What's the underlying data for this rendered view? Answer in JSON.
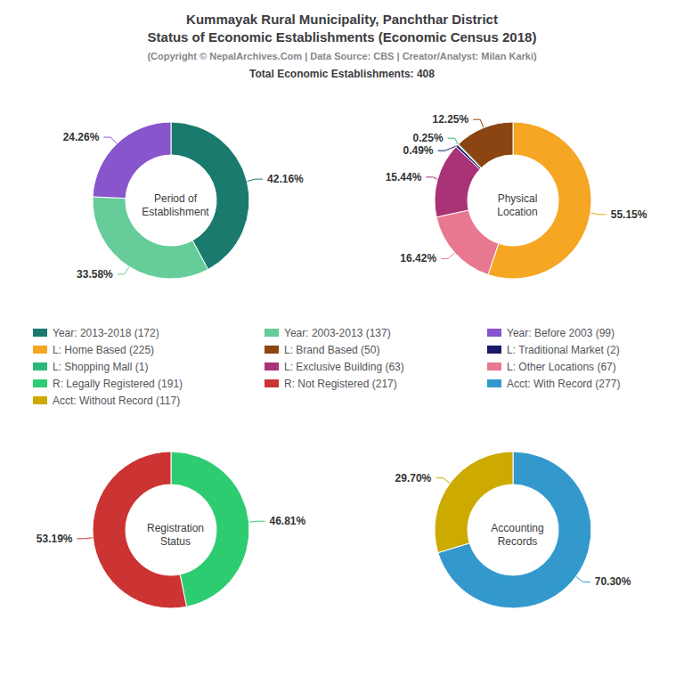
{
  "title": "Kummayak Rural Municipality, Panchthar District\nStatus of Economic Establishments (Economic Census 2018)",
  "subtitle": "(Copyright © NepalArchives.Com | Data Source: CBS | Creator/Analyst: Milan Karki)",
  "annotations": [
    "Total Economic Establishments: 408"
  ],
  "legend_entries": [
    "Year: 2013-2018 (172)",
    "Year: 2003-2013 (137)",
    "Year: Before 2003 (99)",
    "L: Home Based (225)",
    "L: Brand Based (50)",
    "L: Traditional Market (2)",
    "L: Shopping Mall (1)",
    "L: Exclusive Building (63)",
    "L: Other Locations (67)",
    "R: Legally Registered (191)",
    "R: Not Registered (217)",
    "Acct: With Record (277)",
    "Acct: Without Record (117)"
  ],
  "chart_data": [
    {
      "type": "pie",
      "title": "Period of\nEstablishment",
      "categories": [
        "Year: 2013-2018 (172)",
        "Year: 2003-2013 (137)",
        "Year: Before 2003 (99)"
      ],
      "values": [
        42.16,
        33.58,
        24.26
      ],
      "value_labels": [
        "42.16%",
        "33.58%",
        "24.26%"
      ],
      "colors": [
        "#1a7a6e",
        "#66cc99",
        "#8855cc"
      ]
    },
    {
      "type": "pie",
      "title": "Physical\nLocation",
      "categories": [
        "L: Home Based (225)",
        "L: Other Locations (67)",
        "L: Exclusive Building (63)",
        "L: Traditional Market (2)",
        "L: Shopping Mall (1)",
        "L: Brand Based (50)"
      ],
      "values": [
        55.15,
        16.42,
        15.44,
        0.49,
        0.25,
        12.25
      ],
      "value_labels": [
        "55.15%",
        "16.42%",
        "15.44%",
        "0.49%",
        "0.25%",
        "12.25%"
      ],
      "colors": [
        "#f5a623",
        "#e87890",
        "#aa3377",
        "#1a1a66",
        "#2db87a",
        "#8b4513"
      ]
    },
    {
      "type": "pie",
      "title": "Registration\nStatus",
      "categories": [
        "R: Legally Registered (191)",
        "R: Not Registered (217)"
      ],
      "values": [
        46.81,
        53.19
      ],
      "value_labels": [
        "46.81%",
        "53.19%"
      ],
      "colors": [
        "#2ecc71",
        "#cc3333"
      ]
    },
    {
      "type": "pie",
      "title": "Accounting\nRecords",
      "categories": [
        "Acct: With Record (277)",
        "Acct: Without Record (117)"
      ],
      "values": [
        70.3,
        29.7
      ],
      "value_labels": [
        "70.30%",
        "29.70%"
      ],
      "colors": [
        "#3399cc",
        "#ccaa00"
      ]
    }
  ]
}
